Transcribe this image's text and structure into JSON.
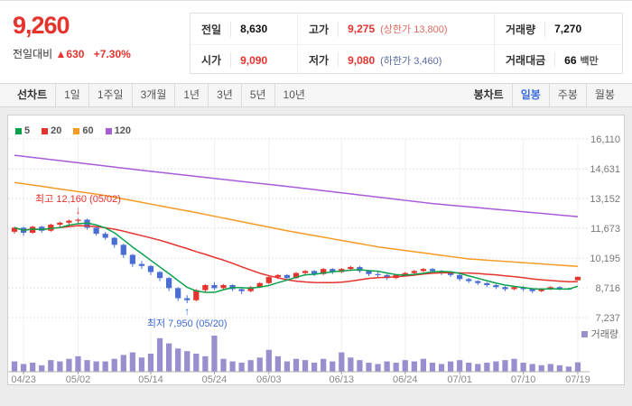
{
  "colors": {
    "up": "#e5332e",
    "down": "#3f6ad8",
    "selected_tab": "#3c6ee0",
    "limit_up": "#e06a5f",
    "limit_down": "#5b6b9e"
  },
  "header": {
    "price": "9,260",
    "change_label": "전일대비",
    "change_arrow": "▲",
    "change_value": "630",
    "change_percent": "+7.30%",
    "info": {
      "prev_label": "전일",
      "prev_value": "8,630",
      "high_label": "고가",
      "high_value": "9,275",
      "high_limit": "(상한가 13,800)",
      "volume_label": "거래량",
      "volume_value": "7,270",
      "open_label": "시가",
      "open_value": "9,090",
      "low_label": "저가",
      "low_value": "9,080",
      "low_limit": "(하한가 3,460)",
      "amount_label": "거래대금",
      "amount_value": "66",
      "amount_unit": "백만"
    }
  },
  "toolbar": {
    "chart_type_label": "선차트",
    "ranges": [
      "1일",
      "1주일",
      "3개월",
      "1년",
      "3년",
      "5년",
      "10년"
    ],
    "candle_label": "봉차트",
    "candle_options": [
      "일봉",
      "주봉",
      "월봉"
    ],
    "selected_candle": "일봉"
  },
  "chart_data": {
    "type": "candlestick",
    "title": "",
    "volume_legend": "거래량",
    "y_ticks": [
      16110,
      14631,
      13152,
      11673,
      10195,
      8716,
      7237
    ],
    "y_tick_labels": [
      "16,110",
      "14,631",
      "13,152",
      "11,673",
      "10,195",
      "8,716",
      "7,237"
    ],
    "x_tick_labels": [
      "04/23",
      "05/02",
      "05/14",
      "05/24",
      "06/03",
      "06/13",
      "06/24",
      "07/01",
      "07/10",
      "07/19"
    ],
    "x_tick_indices": [
      1,
      7,
      15,
      22,
      28,
      36,
      43,
      49,
      56,
      62
    ],
    "ma_legend": [
      {
        "label": "5",
        "color": "#0aa14c"
      },
      {
        "label": "20",
        "color": "#e5332e"
      },
      {
        "label": "60",
        "color": "#f59a23"
      },
      {
        "label": "120",
        "color": "#a85cd6"
      }
    ],
    "colors": {
      "up": "#e5332e",
      "down": "#4a6fd4",
      "ma5": "#0aa14c",
      "ma20": "#e5332e",
      "ma60": "#f59a23",
      "ma120": "#a85cd6",
      "volume": "#998fce"
    },
    "annotations": {
      "high": {
        "text": "최고 12,160 (05/02)",
        "arrow": "↓",
        "index": 7,
        "value": 12160,
        "color": "#e5332e"
      },
      "low": {
        "text": "최저 7,950 (05/20)",
        "arrow": "↑",
        "index": 19,
        "value": 7950,
        "color": "#3f6ad8"
      }
    },
    "candles_format": [
      "open",
      "high",
      "low",
      "close",
      "volume"
    ],
    "candles": [
      [
        11500,
        11750,
        11400,
        11700,
        800
      ],
      [
        11700,
        11750,
        11300,
        11450,
        600
      ],
      [
        11450,
        11800,
        11400,
        11750,
        700
      ],
      [
        11750,
        11800,
        11450,
        11550,
        500
      ],
      [
        11550,
        11900,
        11500,
        11850,
        900
      ],
      [
        11850,
        12000,
        11700,
        11950,
        800
      ],
      [
        11950,
        12100,
        11800,
        12050,
        1000
      ],
      [
        12050,
        12160,
        11900,
        12100,
        1200
      ],
      [
        12100,
        12150,
        11600,
        11700,
        900
      ],
      [
        11700,
        11750,
        11300,
        11400,
        800
      ],
      [
        11400,
        11500,
        11100,
        11200,
        800
      ],
      [
        11200,
        11250,
        10700,
        10850,
        1000
      ],
      [
        10850,
        10900,
        10200,
        10350,
        1300
      ],
      [
        10350,
        10400,
        9750,
        9900,
        1500
      ],
      [
        9900,
        10050,
        9650,
        9800,
        1100
      ],
      [
        9800,
        9850,
        9350,
        9500,
        1400
      ],
      [
        9500,
        9550,
        9050,
        9200,
        2600
      ],
      [
        9200,
        9250,
        8550,
        8700,
        2200
      ],
      [
        8700,
        8750,
        8050,
        8200,
        1800
      ],
      [
        8200,
        8350,
        7950,
        8100,
        1600
      ],
      [
        8100,
        8650,
        8050,
        8600,
        1400
      ],
      [
        8600,
        8900,
        8500,
        8850,
        1200
      ],
      [
        8850,
        9000,
        8600,
        8700,
        2800
      ],
      [
        8700,
        8900,
        8650,
        8850,
        1000
      ],
      [
        8850,
        8900,
        8550,
        8650,
        800
      ],
      [
        8650,
        8700,
        8400,
        8550,
        700
      ],
      [
        8550,
        8800,
        8500,
        8750,
        900
      ],
      [
        8750,
        9000,
        8700,
        8950,
        1100
      ],
      [
        8950,
        9300,
        8900,
        9250,
        1700
      ],
      [
        9250,
        9400,
        9150,
        9350,
        1200
      ],
      [
        9350,
        9400,
        9100,
        9200,
        800
      ],
      [
        9200,
        9500,
        9150,
        9450,
        1000
      ],
      [
        9450,
        9600,
        9350,
        9550,
        900
      ],
      [
        9550,
        9600,
        9300,
        9400,
        700
      ],
      [
        9400,
        9700,
        9350,
        9650,
        1000
      ],
      [
        9650,
        9700,
        9400,
        9500,
        800
      ],
      [
        9500,
        9700,
        9450,
        9650,
        1500
      ],
      [
        9650,
        9800,
        9550,
        9750,
        1100
      ],
      [
        9750,
        9800,
        9450,
        9550,
        900
      ],
      [
        9550,
        9600,
        9300,
        9400,
        700
      ],
      [
        9400,
        9500,
        9250,
        9350,
        600
      ],
      [
        9350,
        9400,
        9100,
        9200,
        800
      ],
      [
        9200,
        9400,
        9150,
        9350,
        700
      ],
      [
        9350,
        9500,
        9300,
        9450,
        900
      ],
      [
        9450,
        9600,
        9400,
        9550,
        800
      ],
      [
        9550,
        9700,
        9500,
        9650,
        1000
      ],
      [
        9650,
        9700,
        9450,
        9550,
        700
      ],
      [
        9550,
        9600,
        9350,
        9450,
        600
      ],
      [
        9450,
        9500,
        9250,
        9350,
        800
      ],
      [
        9350,
        9400,
        9050,
        9150,
        900
      ],
      [
        9150,
        9200,
        8950,
        9050,
        700
      ],
      [
        9050,
        9100,
        8850,
        8950,
        600
      ],
      [
        8950,
        9000,
        8750,
        8850,
        700
      ],
      [
        8850,
        8900,
        8650,
        8750,
        800
      ],
      [
        8750,
        8800,
        8550,
        8650,
        900
      ],
      [
        8650,
        8800,
        8600,
        8750,
        1000
      ],
      [
        8750,
        8800,
        8550,
        8650,
        700
      ],
      [
        8650,
        8700,
        8450,
        8550,
        600
      ],
      [
        8550,
        8700,
        8500,
        8650,
        500
      ],
      [
        8650,
        8800,
        8600,
        8750,
        600
      ],
      [
        8750,
        8800,
        8600,
        8680,
        500
      ],
      [
        8680,
        8720,
        8600,
        8630,
        400
      ],
      [
        9090,
        9275,
        9080,
        9260,
        727
      ]
    ],
    "ma60_points": [
      [
        0,
        13950
      ],
      [
        10,
        13300
      ],
      [
        20,
        12450
      ],
      [
        30,
        11550
      ],
      [
        40,
        10750
      ],
      [
        50,
        10150
      ],
      [
        62,
        9780
      ]
    ],
    "ma120_points": [
      [
        0,
        15300
      ],
      [
        15,
        14500
      ],
      [
        31,
        13700
      ],
      [
        46,
        12900
      ],
      [
        62,
        12250
      ]
    ]
  }
}
